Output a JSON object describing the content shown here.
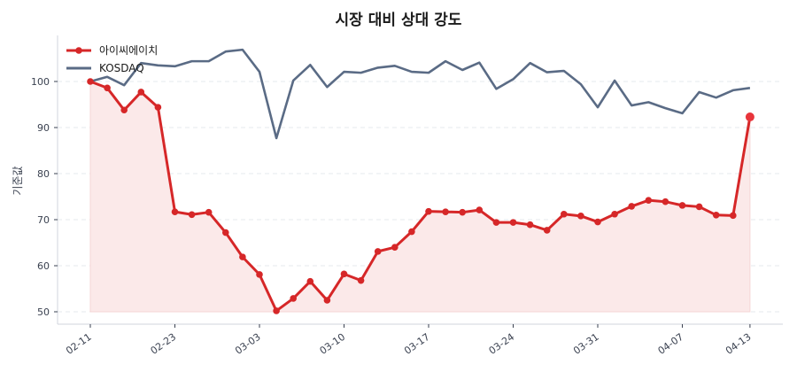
{
  "chart_data": {
    "type": "line",
    "title": "시장 대비 상대 강도",
    "xlabel": "",
    "ylabel": "기준값",
    "ylim": [
      48,
      110
    ],
    "yticks": [
      50,
      60,
      70,
      80,
      90,
      100
    ],
    "grid": "horizontal-dashed",
    "legend_position": "upper-left",
    "x": [
      "02-11",
      "02-12",
      "02-13",
      "02-14",
      "02-15",
      "02-23",
      "02-24",
      "02-25",
      "02-26",
      "02-27",
      "03-03",
      "03-04",
      "03-05",
      "03-06",
      "03-07",
      "03-10",
      "03-11",
      "03-12",
      "03-13",
      "03-14",
      "03-17",
      "03-18",
      "03-19",
      "03-20",
      "03-21",
      "03-24",
      "03-25",
      "03-26",
      "03-27",
      "03-28",
      "03-31",
      "04-01",
      "04-02",
      "04-03",
      "04-04",
      "04-07",
      "04-08",
      "04-09",
      "04-10",
      "04-13"
    ],
    "xtick_labels": [
      "02-11",
      "02-23",
      "03-03",
      "03-10",
      "03-17",
      "03-24",
      "03-31",
      "04-07",
      "04-13"
    ],
    "xtick_indices": [
      0,
      5,
      10,
      15,
      20,
      25,
      30,
      35,
      39
    ],
    "series": [
      {
        "name": "아이씨에이치",
        "color": "#d62728",
        "marker": "circle",
        "fill": "#fbe9e9",
        "values": [
          100.0,
          98.6,
          93.8,
          97.7,
          94.4,
          71.7,
          71.1,
          71.6,
          67.2,
          61.9,
          58.1,
          50.2,
          52.9,
          56.6,
          52.5,
          58.2,
          56.8,
          63.1,
          64.0,
          67.4,
          71.8,
          71.7,
          71.6,
          72.1,
          69.4,
          69.4,
          68.9,
          67.7,
          71.2,
          70.8,
          69.5,
          71.2,
          72.9,
          74.2,
          73.9,
          73.1,
          72.8,
          71.0,
          70.9,
          92.3
        ]
      },
      {
        "name": "KOSDAQ",
        "color": "#5a6b85",
        "marker": "none",
        "values": [
          100.0,
          101.0,
          99.2,
          104.0,
          103.5,
          103.3,
          104.4,
          104.4,
          106.5,
          106.9,
          102.1,
          87.7,
          100.2,
          103.6,
          98.8,
          102.1,
          101.9,
          103.0,
          103.4,
          102.1,
          101.9,
          104.4,
          102.5,
          104.1,
          98.4,
          100.5,
          104.0,
          102.0,
          102.3,
          99.4,
          94.4,
          100.2,
          94.8,
          95.5,
          94.2,
          93.1,
          97.7,
          96.5,
          98.1,
          98.6
        ]
      }
    ]
  }
}
